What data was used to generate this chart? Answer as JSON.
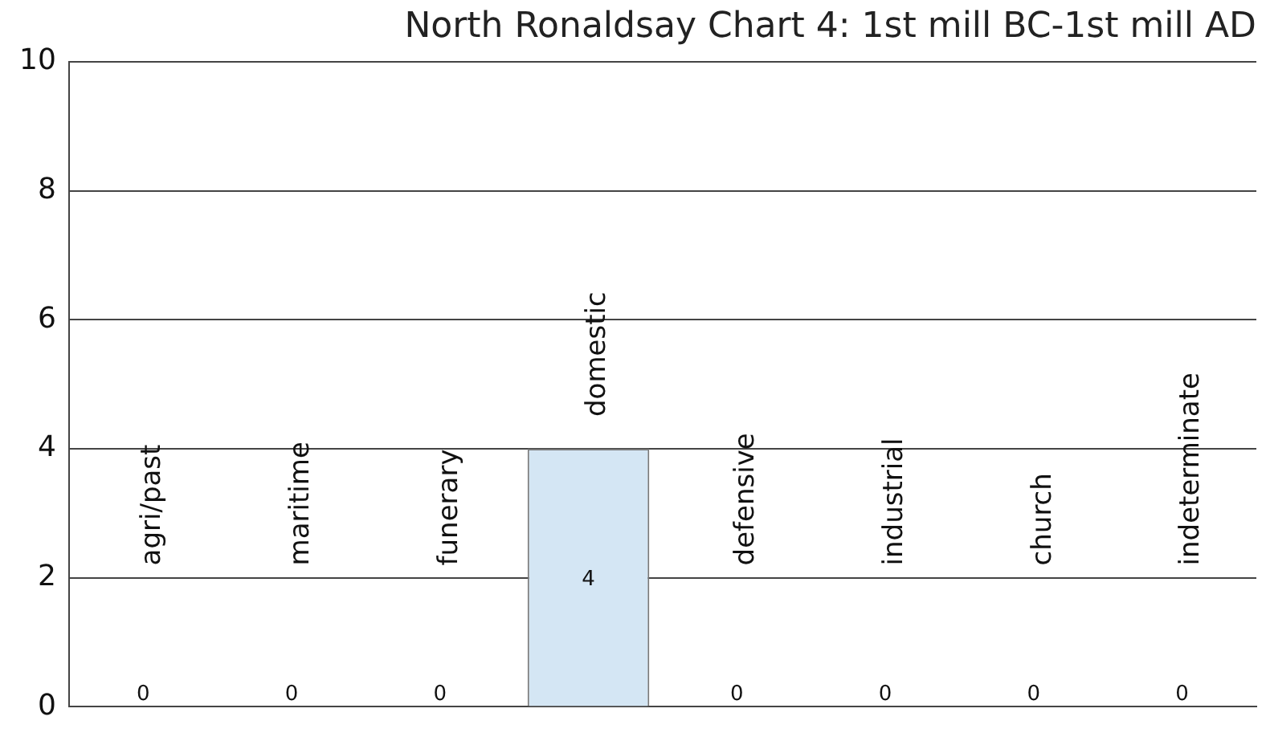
{
  "chart_data": {
    "type": "bar",
    "title": "North Ronaldsay Chart 4: 1st mill BC-1st mill AD",
    "categories": [
      "agri/past",
      "maritime",
      "funerary",
      "domestic",
      "defensive",
      "industrial",
      "church",
      "indeterminate"
    ],
    "values": [
      0,
      0,
      0,
      4,
      0,
      0,
      0,
      0
    ],
    "color": "#d4e6f4",
    "ylim": [
      0,
      10
    ],
    "yticks": [
      0,
      2,
      4,
      6,
      8,
      10
    ],
    "grid": "y",
    "data_labels": true
  }
}
